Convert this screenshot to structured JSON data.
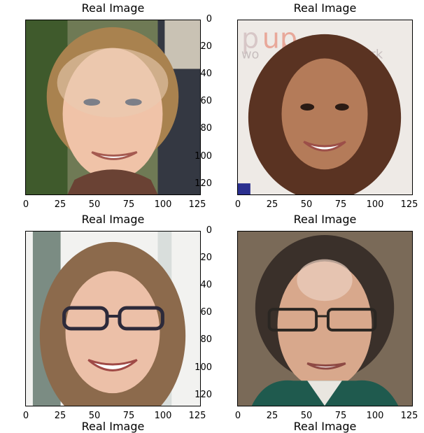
{
  "panels": [
    {
      "title": "Real Image",
      "image": "portrait-man-curly-hair-smiling"
    },
    {
      "title": "Real Image",
      "image": "portrait-woman-dark-hair-smiling"
    },
    {
      "title": "Real Image",
      "image": "portrait-woman-glasses-grinning"
    },
    {
      "title": "Real Image",
      "image": "portrait-man-glasses-smiling"
    }
  ],
  "bottom_titles": [
    "Real Image",
    "Real Image"
  ],
  "axes": {
    "y_ticks": [
      "0",
      "20",
      "40",
      "60",
      "80",
      "100",
      "120"
    ],
    "x_ticks": [
      "0",
      "25",
      "50",
      "75",
      "100",
      "125"
    ],
    "range": [
      0,
      128
    ]
  }
}
